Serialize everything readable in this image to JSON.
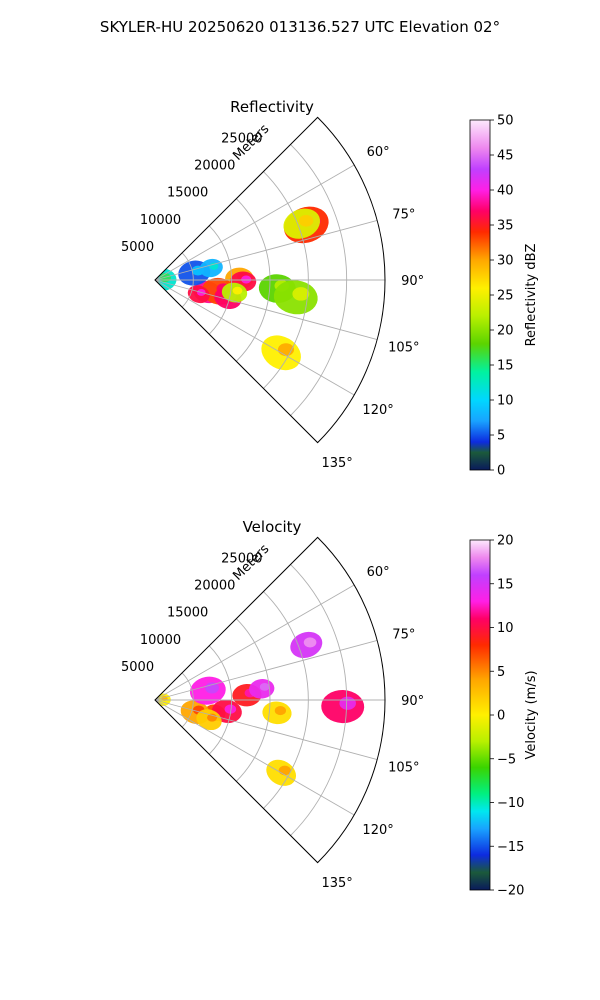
{
  "title": "SKYLER-HU  20250620  013136.527 UTC Elevation 02°",
  "colors": {
    "background": "#ffffff",
    "grid": "#b0b0b0",
    "axis": "#000000"
  },
  "chart_data": [
    {
      "type": "polar-sector",
      "title": "Reflectivity",
      "radial_label": "Meters",
      "radial_ticks": [
        "5000",
        "10000",
        "15000",
        "20000",
        "25000"
      ],
      "radial_values": [
        5000,
        10000,
        15000,
        20000,
        25000
      ],
      "rmax": 30000,
      "angle_ticks": [
        "60°",
        "75°",
        "90°",
        "105°",
        "120°",
        "135°"
      ],
      "angle_values": [
        60,
        75,
        90,
        105,
        120,
        135
      ],
      "theta_range": [
        45,
        135
      ],
      "colorbar": {
        "label": "Reflectivity dBZ",
        "ticks": [
          "0",
          "5",
          "10",
          "15",
          "20",
          "25",
          "30",
          "35",
          "40",
          "45",
          "50"
        ],
        "tick_values": [
          0,
          5,
          10,
          15,
          20,
          25,
          30,
          35,
          40,
          45,
          50
        ],
        "range": [
          0,
          50
        ],
        "stops": [
          {
            "v": 0,
            "c": "#0a1a5c"
          },
          {
            "v": 2.5,
            "c": "#1b5a3a"
          },
          {
            "v": 4,
            "c": "#0d2be0"
          },
          {
            "v": 7,
            "c": "#19a3ff"
          },
          {
            "v": 10,
            "c": "#00d7ff"
          },
          {
            "v": 14,
            "c": "#00f2a0"
          },
          {
            "v": 18,
            "c": "#5bd400"
          },
          {
            "v": 22,
            "c": "#b9f000"
          },
          {
            "v": 26,
            "c": "#fff000"
          },
          {
            "v": 30,
            "c": "#ffa700"
          },
          {
            "v": 34,
            "c": "#ff2a00"
          },
          {
            "v": 37,
            "c": "#ff0066"
          },
          {
            "v": 40,
            "c": "#ff1fe6"
          },
          {
            "v": 43,
            "c": "#c040ff"
          },
          {
            "v": 46,
            "c": "#ee88ee"
          },
          {
            "v": 50,
            "c": "#fde9fd"
          }
        ]
      },
      "echo_areas": [
        {
          "theta": 70,
          "r": 21000,
          "value": 34
        },
        {
          "theta": 69,
          "r": 20500,
          "value": 24
        },
        {
          "theta": 89,
          "r": 11000,
          "value": 30
        },
        {
          "theta": 91,
          "r": 11500,
          "value": 36
        },
        {
          "theta": 103,
          "r": 7000,
          "value": 38
        },
        {
          "theta": 100,
          "r": 8500,
          "value": 33
        },
        {
          "theta": 104,
          "r": 9800,
          "value": 37
        },
        {
          "theta": 108,
          "r": 6000,
          "value": 36
        },
        {
          "theta": 99,
          "r": 10500,
          "value": 22
        },
        {
          "theta": 94,
          "r": 16000,
          "value": 18
        },
        {
          "theta": 120,
          "r": 19000,
          "value": 26
        },
        {
          "theta": 80,
          "r": 5200,
          "value": 5
        },
        {
          "theta": 78,
          "r": 7500,
          "value": 8
        },
        {
          "theta": 88,
          "r": 900,
          "value": 12
        },
        {
          "theta": 97,
          "r": 18500,
          "value": 20
        }
      ]
    },
    {
      "type": "polar-sector",
      "title": "Velocity",
      "radial_label": "Meters",
      "radial_ticks": [
        "5000",
        "10000",
        "15000",
        "20000",
        "25000"
      ],
      "radial_values": [
        5000,
        10000,
        15000,
        20000,
        25000
      ],
      "rmax": 30000,
      "angle_ticks": [
        "60°",
        "75°",
        "90°",
        "105°",
        "120°",
        "135°"
      ],
      "angle_values": [
        60,
        75,
        90,
        105,
        120,
        135
      ],
      "theta_range": [
        45,
        135
      ],
      "colorbar": {
        "label": "Velocity (m/s)",
        "ticks": [
          "−20",
          "−15",
          "−10",
          "−5",
          "0",
          "5",
          "10",
          "15",
          "20"
        ],
        "tick_values": [
          -20,
          -15,
          -10,
          -5,
          0,
          5,
          10,
          15,
          20
        ],
        "range": [
          -20,
          20
        ],
        "stops": [
          {
            "v": -20,
            "c": "#0a1a5c"
          },
          {
            "v": -18,
            "c": "#1b5a3a"
          },
          {
            "v": -16,
            "c": "#0d2be0"
          },
          {
            "v": -13,
            "c": "#19a3ff"
          },
          {
            "v": -11,
            "c": "#00e8f0"
          },
          {
            "v": -9,
            "c": "#00f080"
          },
          {
            "v": -6,
            "c": "#3ad400"
          },
          {
            "v": -3,
            "c": "#b9f000"
          },
          {
            "v": 0,
            "c": "#fff000"
          },
          {
            "v": 4,
            "c": "#ffa700"
          },
          {
            "v": 8,
            "c": "#ff2a00"
          },
          {
            "v": 11,
            "c": "#ff0066"
          },
          {
            "v": 13,
            "c": "#ff1fe6"
          },
          {
            "v": 16,
            "c": "#c040ff"
          },
          {
            "v": 18,
            "c": "#ee88ee"
          },
          {
            "v": 20,
            "c": "#fde9fd"
          }
        ]
      },
      "echo_areas": [
        {
          "theta": 70,
          "r": 21000,
          "value": 15
        },
        {
          "theta": 87,
          "r": 12000,
          "value": 9
        },
        {
          "theta": 84,
          "r": 14000,
          "value": 14
        },
        {
          "theta": 102,
          "r": 8000,
          "value": 7
        },
        {
          "theta": 99,
          "r": 9500,
          "value": 10
        },
        {
          "theta": 107,
          "r": 5500,
          "value": 4
        },
        {
          "theta": 110,
          "r": 7500,
          "value": 2
        },
        {
          "theta": 96,
          "r": 16000,
          "value": 1
        },
        {
          "theta": 120,
          "r": 19000,
          "value": 1
        },
        {
          "theta": 88,
          "r": 1000,
          "value": 0
        },
        {
          "theta": 80,
          "r": 7000,
          "value": 13
        },
        {
          "theta": 92,
          "r": 24500,
          "value": 11
        }
      ]
    }
  ]
}
